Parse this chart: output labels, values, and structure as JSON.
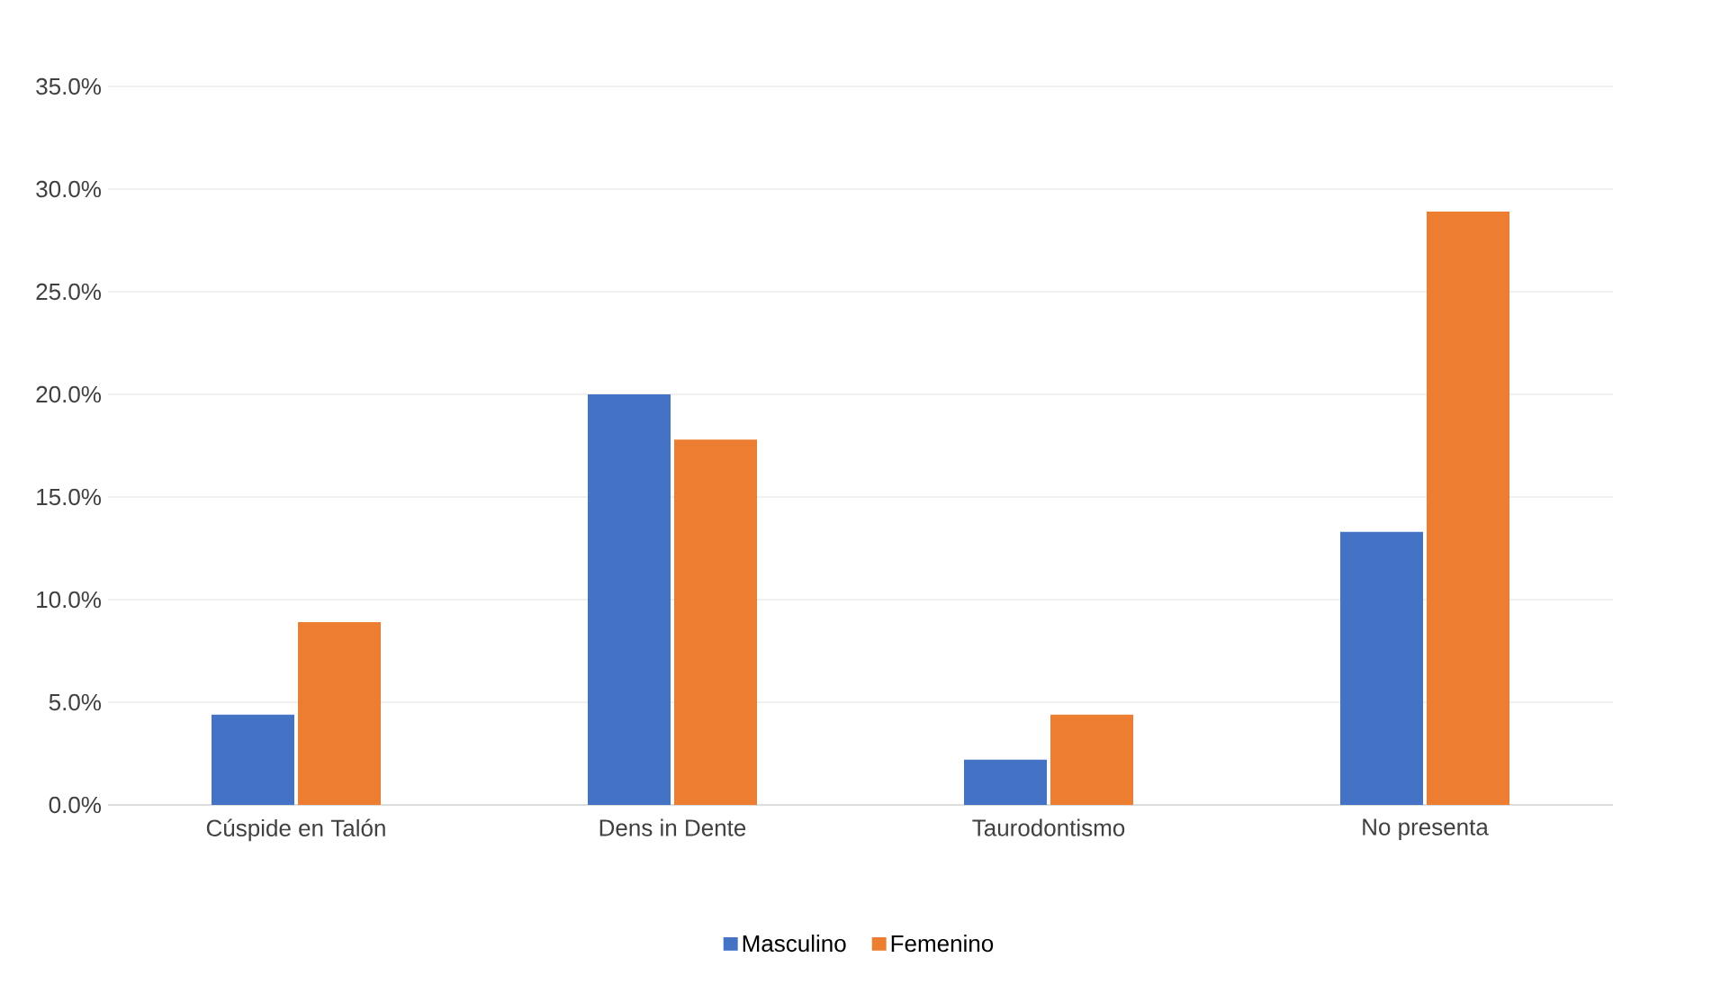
{
  "chart_data": {
    "type": "bar",
    "categories": [
      "Cúspide en Talón",
      "Dens in Dente",
      "Taurodontismo",
      "No presenta"
    ],
    "series": [
      {
        "name": "Masculino",
        "color": "#4472c4",
        "values": [
          4.4,
          20.0,
          2.2,
          13.3
        ]
      },
      {
        "name": "Femenino",
        "color": "#ed7d31",
        "values": [
          8.9,
          17.8,
          4.4,
          28.9
        ]
      }
    ],
    "ylim": [
      0,
      35
    ],
    "yticks": [
      {
        "value": 0,
        "label": "0.0%"
      },
      {
        "value": 5,
        "label": "5.0%"
      },
      {
        "value": 10,
        "label": "10.0%"
      },
      {
        "value": 15,
        "label": "15.0%"
      },
      {
        "value": 20,
        "label": "20.0%"
      },
      {
        "value": 25,
        "label": "25.0%"
      },
      {
        "value": 30,
        "label": "30.0%"
      },
      {
        "value": 35,
        "label": "35.0%"
      }
    ],
    "grid": "y",
    "legend": "bottom"
  }
}
